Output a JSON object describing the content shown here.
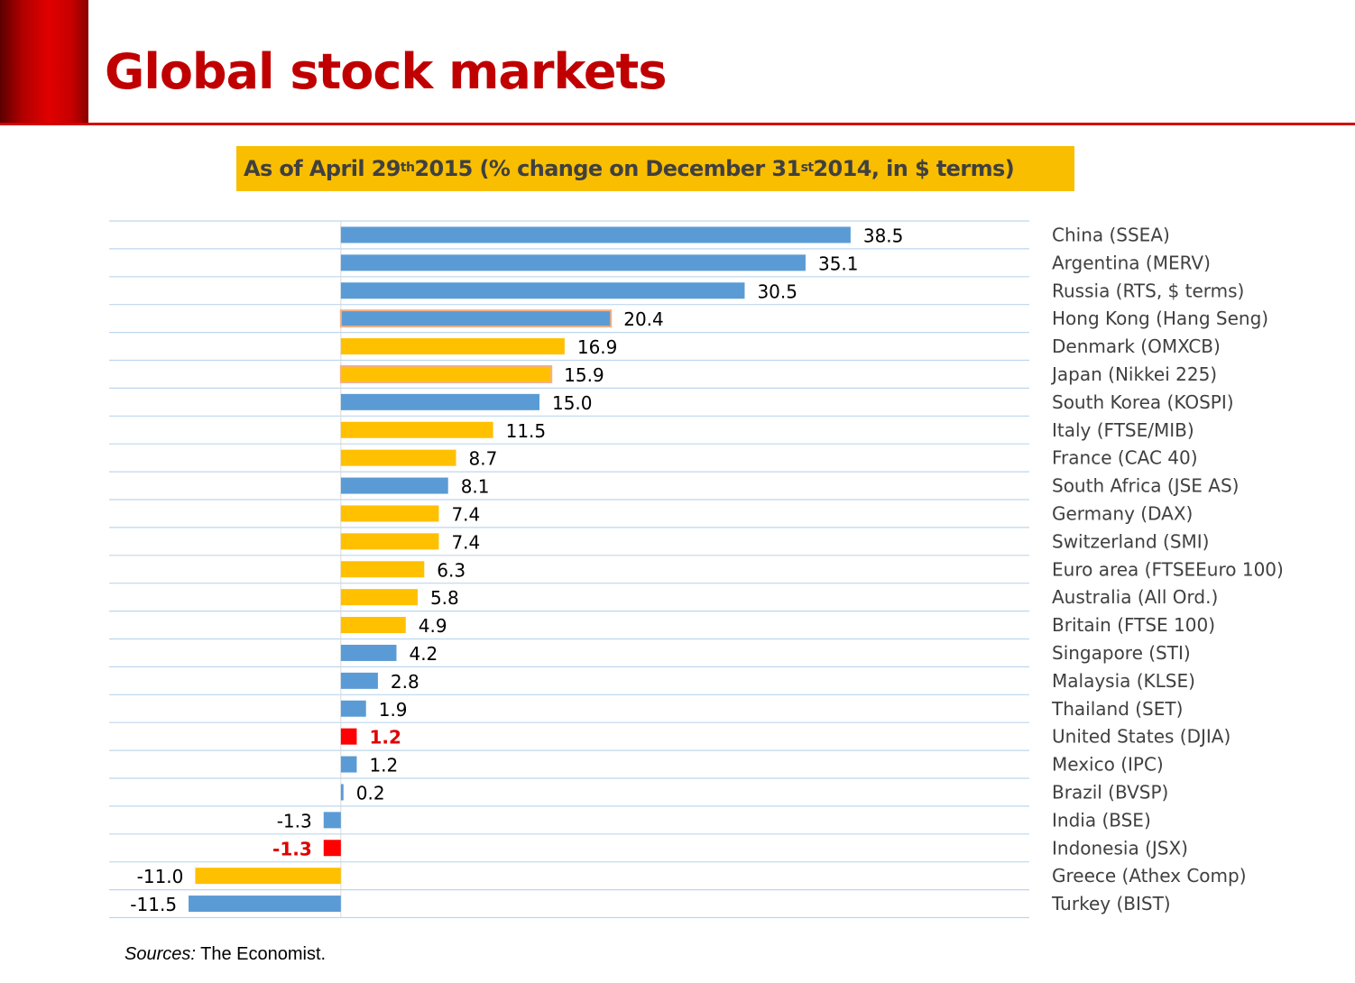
{
  "header": {
    "title": "Global stock markets"
  },
  "subtitle": {
    "part1": "As of April 29",
    "sup1": "th",
    "part2": " 2015 (% change on December 31",
    "sup2": "st",
    "part3": " 2014, in $ terms)"
  },
  "colors": {
    "blue": "#5b9bd5",
    "gold": "#ffc000",
    "red": "#ff0000",
    "gold_border": "#f4b183"
  },
  "chart_data": {
    "type": "bar",
    "orientation": "horizontal",
    "title": "As of April 29th 2015 (% change on December 31st 2014, in $ terms)",
    "xlim": [
      -17.5,
      52
    ],
    "categories": [
      "China (SSEA)",
      "Argentina (MERV)",
      "Russia (RTS, $ terms)",
      "Hong Kong (Hang Seng)",
      "Denmark (OMXCB)",
      "Japan (Nikkei 225)",
      "South Korea (KOSPI)",
      "Italy (FTSE/MIB)",
      "France (CAC 40)",
      "South Africa (JSE AS)",
      "Germany (DAX)",
      "Switzerland (SMI)",
      "Euro area (FTSEEuro 100)",
      "Australia (All Ord.)",
      "Britain (FTSE 100)",
      "Singapore (STI)",
      "Malaysia (KLSE)",
      "Thailand (SET)",
      "United States (DJIA)",
      "Mexico (IPC)",
      "Brazil (BVSP)",
      "India (BSE)",
      "Indonesia (JSX)",
      "Greece (Athex Comp)",
      "Turkey (BIST)"
    ],
    "values": [
      38.5,
      35.1,
      30.5,
      20.4,
      16.9,
      15.9,
      15.0,
      11.5,
      8.7,
      8.1,
      7.4,
      7.4,
      6.3,
      5.8,
      4.9,
      4.2,
      2.8,
      1.9,
      1.2,
      1.2,
      0.2,
      -1.3,
      -1.3,
      -11.0,
      -11.5
    ],
    "value_labels": [
      "38.5",
      "35.1",
      "30.5",
      "20.4",
      "16.9",
      "15.9",
      "15.0",
      "11.5",
      "8.7",
      "8.1",
      "7.4",
      "7.4",
      "6.3",
      "5.8",
      "4.9",
      "4.2",
      "2.8",
      "1.9",
      "1.2",
      "1.2",
      "0.2",
      "-1.3",
      "-1.3",
      "-11.0",
      "-11.5"
    ],
    "bar_colors": [
      "blue",
      "blue",
      "blue",
      "blue",
      "gold",
      "gold",
      "blue",
      "gold",
      "gold",
      "blue",
      "gold",
      "gold",
      "gold",
      "gold",
      "gold",
      "blue",
      "blue",
      "blue",
      "red",
      "blue",
      "blue",
      "blue",
      "red",
      "gold",
      "blue"
    ],
    "outlined": [
      false,
      false,
      false,
      true,
      false,
      true,
      false,
      false,
      false,
      false,
      false,
      false,
      false,
      false,
      false,
      false,
      false,
      false,
      false,
      false,
      false,
      false,
      false,
      false,
      false
    ],
    "highlighted_labels": [
      false,
      false,
      false,
      false,
      false,
      false,
      false,
      false,
      false,
      false,
      false,
      false,
      false,
      false,
      false,
      false,
      false,
      false,
      true,
      false,
      false,
      false,
      true,
      false,
      false
    ],
    "gridlines": true,
    "category_axis_position": "right"
  },
  "footer": {
    "sources_label": "Sources:",
    "sources_text": " The Economist."
  }
}
